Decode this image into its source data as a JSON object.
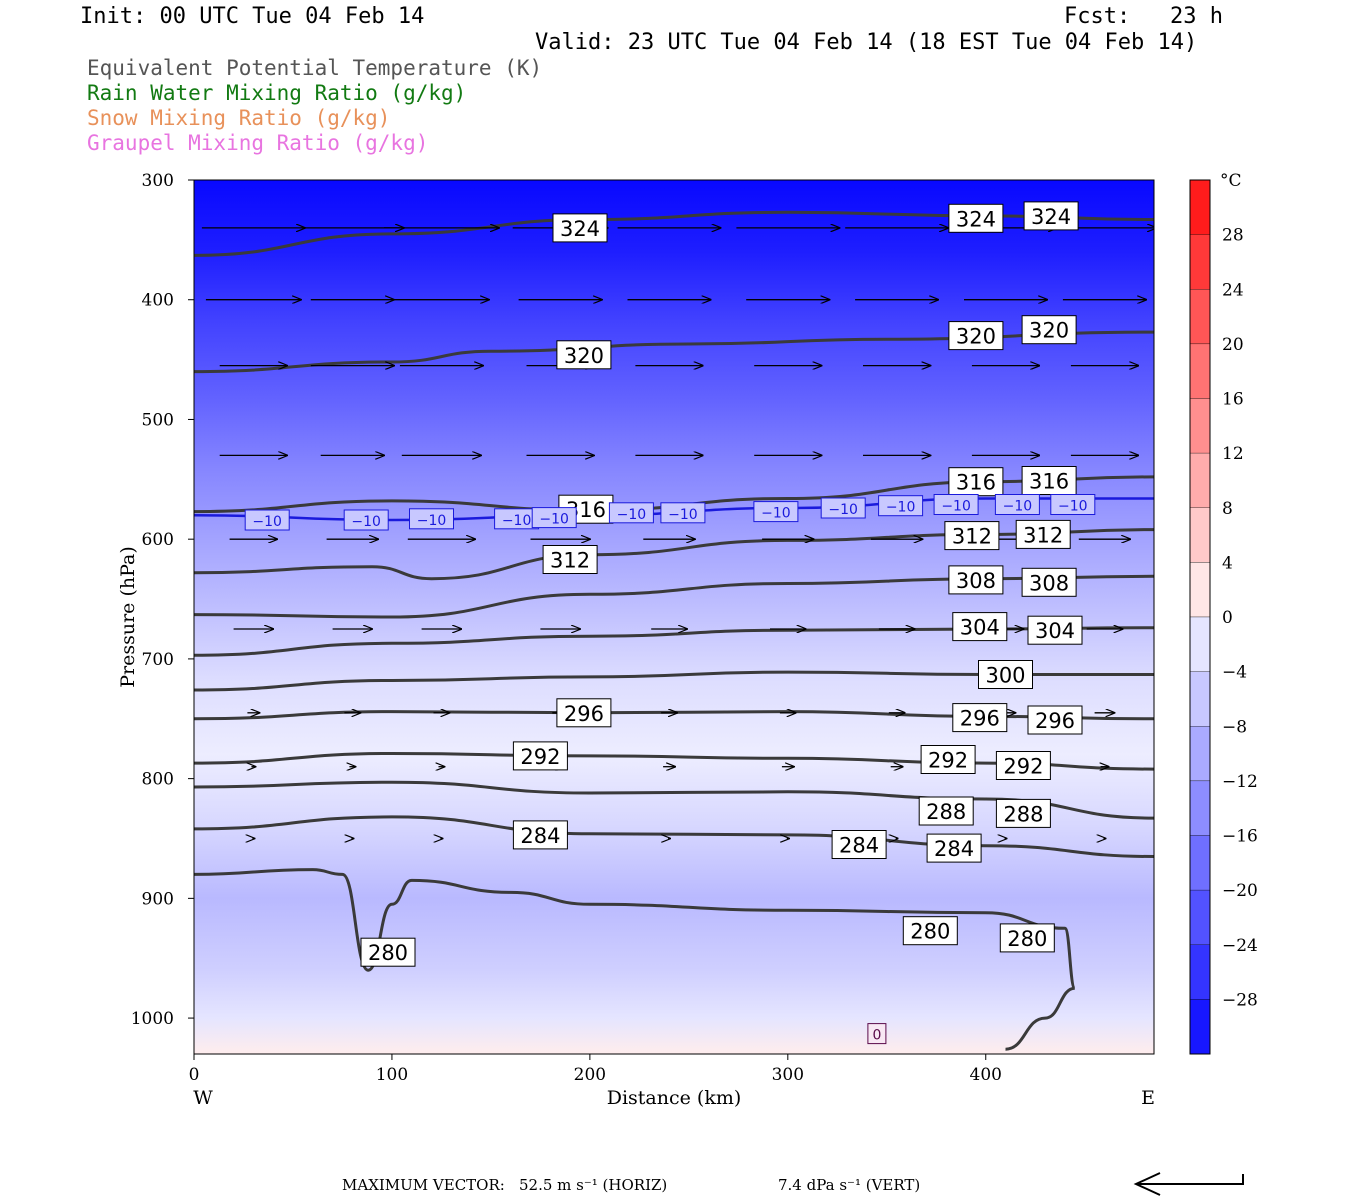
{
  "header": {
    "init": "Init: 00 UTC Tue 04 Feb 14",
    "fcst": "Fcst:   23 h",
    "valid": "Valid: 23 UTC Tue 04 Feb 14 (18 EST Tue 04 Feb 14)"
  },
  "legend": [
    {
      "label": "Equivalent Potential Temperature (K)",
      "color": "#555555"
    },
    {
      "label": "Rain Water Mixing Ratio (g/kg)",
      "color": "#127a12"
    },
    {
      "label": "Snow Mixing Ratio (g/kg)",
      "color": "#e8915a"
    },
    {
      "label": "Graupel Mixing Ratio (g/kg)",
      "color": "#e874e0"
    }
  ],
  "footer": {
    "max_vector_label": "MAXIMUM VECTOR:",
    "horiz": "52.5 m s⁻¹ (HORIZ)",
    "vert": "7.4 dPa s⁻¹ (VERT)"
  },
  "chart_data": {
    "type": "heatmap",
    "xlabel": "Distance (km)",
    "ylabel": "Pressure (hPa)",
    "xlim": [
      0,
      485
    ],
    "ylim": [
      300,
      1030
    ],
    "x_ticks": [
      0,
      100,
      200,
      300,
      400
    ],
    "y_ticks": [
      300,
      400,
      500,
      600,
      700,
      800,
      900,
      1000
    ],
    "x_end_labels": {
      "left": "W",
      "right": "E"
    },
    "colorbar": {
      "unit": "°C",
      "ticks": [
        28,
        24,
        20,
        16,
        12,
        8,
        4,
        0,
        -4,
        -8,
        -12,
        -16,
        -20,
        -24,
        -28
      ],
      "min": -32,
      "max": 32
    },
    "temperature_fill": [
      {
        "p": 300,
        "t": -32
      },
      {
        "p": 360,
        "t": -29
      },
      {
        "p": 420,
        "t": -24
      },
      {
        "p": 480,
        "t": -20
      },
      {
        "p": 540,
        "t": -15
      },
      {
        "p": 600,
        "t": -11
      },
      {
        "p": 660,
        "t": -7
      },
      {
        "p": 720,
        "t": -3
      },
      {
        "p": 780,
        "t": -1
      },
      {
        "p": 840,
        "t": -4
      },
      {
        "p": 900,
        "t": -8
      },
      {
        "p": 960,
        "t": -5
      },
      {
        "p": 1000,
        "t": -2
      },
      {
        "p": 1030,
        "t": 1
      }
    ],
    "theta_e_contours": [
      {
        "value": 324,
        "x": [
          0,
          100,
          200,
          300,
          400,
          485
        ],
        "p": [
          363,
          345,
          333,
          327,
          330,
          333
        ]
      },
      {
        "value": 320,
        "x": [
          0,
          100,
          150,
          250,
          350,
          485
        ],
        "p": [
          460,
          452,
          443,
          437,
          433,
          427
        ]
      },
      {
        "value": 316,
        "x": [
          0,
          100,
          200,
          300,
          400,
          485
        ],
        "p": [
          577,
          568,
          576,
          566,
          552,
          548
        ]
      },
      {
        "value": 312,
        "x": [
          0,
          90,
          120,
          200,
          300,
          400,
          485
        ],
        "p": [
          628,
          623,
          633,
          613,
          601,
          596,
          592
        ]
      },
      {
        "value": 308,
        "x": [
          0,
          100,
          200,
          300,
          400,
          485
        ],
        "p": [
          663,
          665,
          646,
          637,
          633,
          631
        ]
      },
      {
        "value": 304,
        "x": [
          0,
          100,
          200,
          300,
          400,
          485
        ],
        "p": [
          697,
          687,
          681,
          676,
          675,
          674
        ]
      },
      {
        "value": 300,
        "x": [
          0,
          100,
          200,
          300,
          400,
          485
        ],
        "p": [
          726,
          718,
          715,
          711,
          713,
          713
        ]
      },
      {
        "value": 296,
        "x": [
          0,
          100,
          200,
          300,
          400,
          485
        ],
        "p": [
          750,
          744,
          745,
          744,
          748,
          750
        ]
      },
      {
        "value": 292,
        "x": [
          0,
          100,
          200,
          300,
          400,
          485
        ],
        "p": [
          787,
          779,
          781,
          783,
          787,
          792
        ]
      },
      {
        "value": 288,
        "x": [
          0,
          100,
          200,
          300,
          400,
          485
        ],
        "p": [
          807,
          803,
          812,
          811,
          817,
          833
        ]
      },
      {
        "value": 284,
        "x": [
          0,
          100,
          200,
          300,
          400,
          485
        ],
        "p": [
          842,
          832,
          846,
          847,
          856,
          865
        ]
      },
      {
        "value": 280,
        "x": [
          0,
          60,
          75,
          88,
          100,
          110,
          160,
          200,
          300,
          400,
          440,
          445,
          430,
          410
        ],
        "p": [
          880,
          876,
          880,
          960,
          905,
          885,
          895,
          905,
          910,
          912,
          925,
          975,
          1000,
          1026
        ]
      }
    ],
    "contour_labels": [
      {
        "text": "324",
        "x": 195,
        "p": 340
      },
      {
        "text": "324",
        "x": 395,
        "p": 332
      },
      {
        "text": "324",
        "x": 433,
        "p": 330
      },
      {
        "text": "320",
        "x": 197,
        "p": 446
      },
      {
        "text": "320",
        "x": 395,
        "p": 430
      },
      {
        "text": "320",
        "x": 432,
        "p": 425
      },
      {
        "text": "316",
        "x": 198,
        "p": 575
      },
      {
        "text": "316",
        "x": 395,
        "p": 552
      },
      {
        "text": "316",
        "x": 432,
        "p": 551
      },
      {
        "text": "312",
        "x": 190,
        "p": 617
      },
      {
        "text": "312",
        "x": 393,
        "p": 597
      },
      {
        "text": "312",
        "x": 429,
        "p": 596
      },
      {
        "text": "308",
        "x": 395,
        "p": 634
      },
      {
        "text": "308",
        "x": 432,
        "p": 636
      },
      {
        "text": "304",
        "x": 397,
        "p": 673
      },
      {
        "text": "304",
        "x": 435,
        "p": 676
      },
      {
        "text": "300",
        "x": 410,
        "p": 713
      },
      {
        "text": "296",
        "x": 197,
        "p": 745
      },
      {
        "text": "296",
        "x": 397,
        "p": 749
      },
      {
        "text": "296",
        "x": 435,
        "p": 751
      },
      {
        "text": "292",
        "x": 175,
        "p": 781
      },
      {
        "text": "292",
        "x": 381,
        "p": 784
      },
      {
        "text": "292",
        "x": 419,
        "p": 789
      },
      {
        "text": "288",
        "x": 380,
        "p": 827
      },
      {
        "text": "288",
        "x": 419,
        "p": 829
      },
      {
        "text": "284",
        "x": 175,
        "p": 847
      },
      {
        "text": "284",
        "x": 336,
        "p": 855
      },
      {
        "text": "284",
        "x": 384,
        "p": 858
      },
      {
        "text": "280",
        "x": 98,
        "p": 945
      },
      {
        "text": "280",
        "x": 372,
        "p": 927
      },
      {
        "text": "280",
        "x": 421,
        "p": 933
      }
    ],
    "temp_contour": {
      "value": -10,
      "x": [
        0,
        100,
        200,
        300,
        400,
        485
      ],
      "p": [
        580,
        584,
        580,
        574,
        566,
        566
      ],
      "labels": [
        {
          "text": "−10",
          "x": 37,
          "p": 584
        },
        {
          "text": "−10",
          "x": 87,
          "p": 584
        },
        {
          "text": "−10",
          "x": 120,
          "p": 583
        },
        {
          "text": "−10",
          "x": 163,
          "p": 583
        },
        {
          "text": "−10",
          "x": 182,
          "p": 582
        },
        {
          "text": "−10",
          "x": 221,
          "p": 578
        },
        {
          "text": "−10",
          "x": 247,
          "p": 578
        },
        {
          "text": "−10",
          "x": 294,
          "p": 577
        },
        {
          "text": "−10",
          "x": 328,
          "p": 574
        },
        {
          "text": "−10",
          "x": 357,
          "p": 572
        },
        {
          "text": "−10",
          "x": 385,
          "p": 571
        },
        {
          "text": "−10",
          "x": 416,
          "p": 571
        },
        {
          "text": "−10",
          "x": 444,
          "p": 571
        }
      ]
    },
    "freezing_label": {
      "text": "0",
      "x": 345,
      "p": 1013
    },
    "wind_vector_rows": [
      {
        "p": 340,
        "lengths_km": [
          52,
          52,
          58,
          48,
          52,
          52,
          52,
          52,
          52
        ]
      },
      {
        "p": 400,
        "lengths_km": [
          48,
          42,
          48,
          42,
          42,
          42,
          42,
          42,
          42
        ]
      },
      {
        "p": 455,
        "lengths_km": [
          34,
          42,
          42,
          34,
          34,
          34,
          34,
          34,
          34
        ]
      },
      {
        "p": 530,
        "lengths_km": [
          34,
          32,
          40,
          34,
          34,
          34,
          34,
          34,
          34
        ]
      },
      {
        "p": 600,
        "lengths_km": [
          24,
          26,
          34,
          30,
          26,
          26,
          26,
          26,
          26
        ]
      },
      {
        "p": 675,
        "lengths_km": [
          20,
          20,
          20,
          20,
          18,
          18,
          18,
          18,
          18
        ]
      },
      {
        "p": 745,
        "lengths_km": [
          6,
          8,
          8,
          8,
          8,
          8,
          8,
          10,
          10
        ]
      },
      {
        "p": 790,
        "lengths_km": [
          2,
          3,
          3,
          4,
          6,
          6,
          6,
          6,
          4
        ]
      },
      {
        "p": 850,
        "lengths_km": [
          1,
          1,
          1,
          1,
          1,
          1,
          1,
          1,
          1
        ]
      }
    ]
  }
}
